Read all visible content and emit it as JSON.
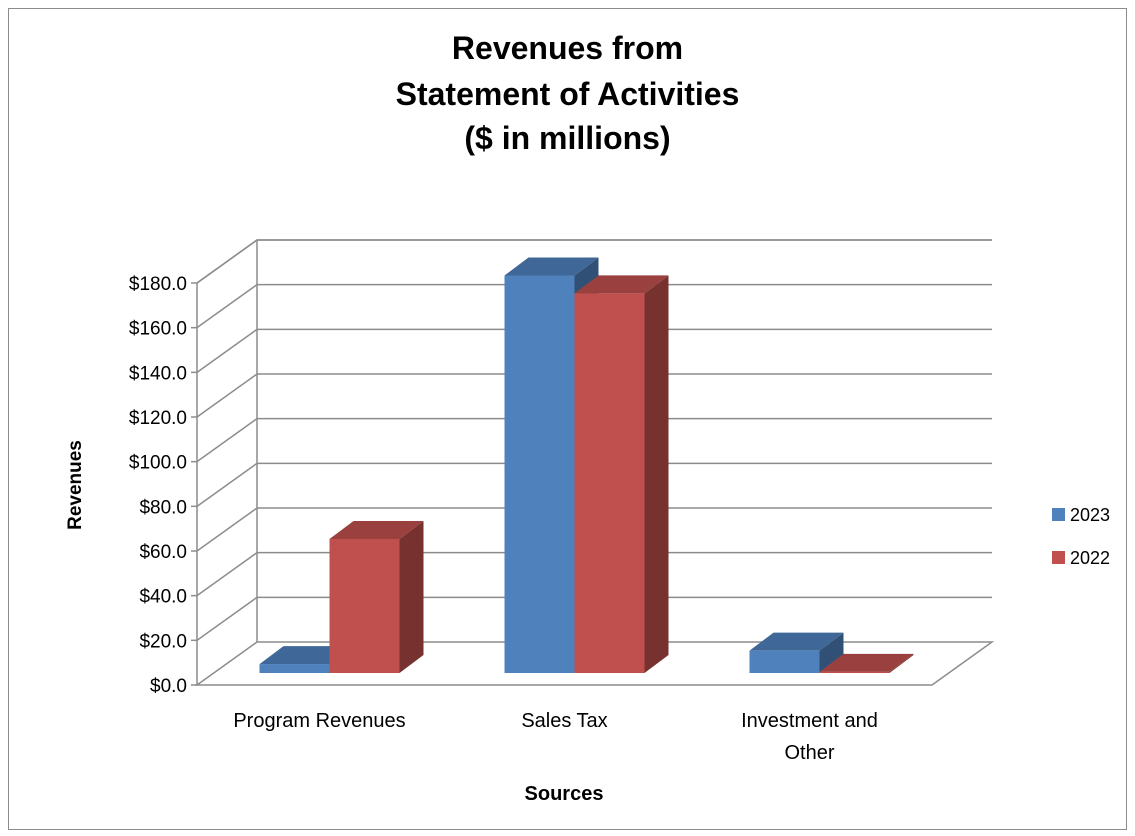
{
  "chart_data": {
    "type": "bar",
    "title_lines": [
      "Revenues from",
      "Statement of Activities",
      "($ in millions)"
    ],
    "xlabel": "Sources",
    "ylabel": "Revenues",
    "categories": [
      [
        "Program Revenues"
      ],
      [
        "Sales Tax"
      ],
      [
        "Investment and",
        "Other"
      ]
    ],
    "series": [
      {
        "name": "2023",
        "values": [
          4,
          178,
          10
        ],
        "color": "#4f81bd"
      },
      {
        "name": "2022",
        "values": [
          60,
          170,
          0.5
        ],
        "color": "#c0504d"
      }
    ],
    "yticks": [
      "$0.0",
      "$20.0",
      "$40.0",
      "$60.0",
      "$80.0",
      "$100.0",
      "$120.0",
      "$140.0",
      "$160.0",
      "$180.0"
    ],
    "ylim": [
      0,
      180
    ],
    "grid": true,
    "legend_position": "right",
    "three_d": true
  }
}
